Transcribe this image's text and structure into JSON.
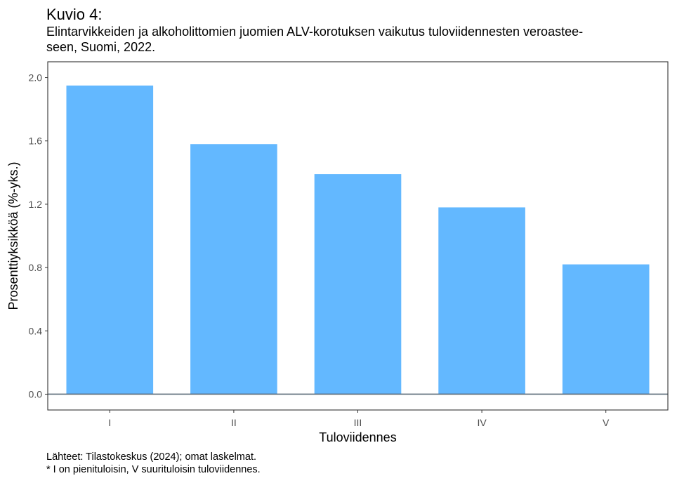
{
  "title": "Kuvio 4:",
  "subtitle_line1": "Elintarvikkeiden ja alkoholittomien juomien ALV-korotuksen vaikutus tuloviidennesten veroastee-",
  "subtitle_line2": "seen, Suomi, 2022.",
  "footer": {
    "source": "Lähteet: Tilastokeskus (2024); omat laskelmat.",
    "note": "* I on pienituloisin, V suurituloisin tuloviidennes."
  },
  "chart_data": {
    "type": "bar",
    "categories": [
      "I",
      "II",
      "III",
      "IV",
      "V"
    ],
    "values": [
      1.95,
      1.58,
      1.39,
      1.18,
      0.82
    ],
    "xlabel": "Tuloviidennes",
    "ylabel": "Prosenttiyksikköä (%-yks.)",
    "ylim": [
      -0.1,
      2.1
    ],
    "yticks": [
      0.0,
      0.4,
      0.8,
      1.2,
      1.6,
      2.0
    ],
    "ytick_labels": [
      "0.0",
      "0.4",
      "0.8",
      "1.2",
      "1.6",
      "2.0"
    ],
    "bar_color": "#63b8ff",
    "zero_line_color": "#5a6a78",
    "grid": false
  }
}
